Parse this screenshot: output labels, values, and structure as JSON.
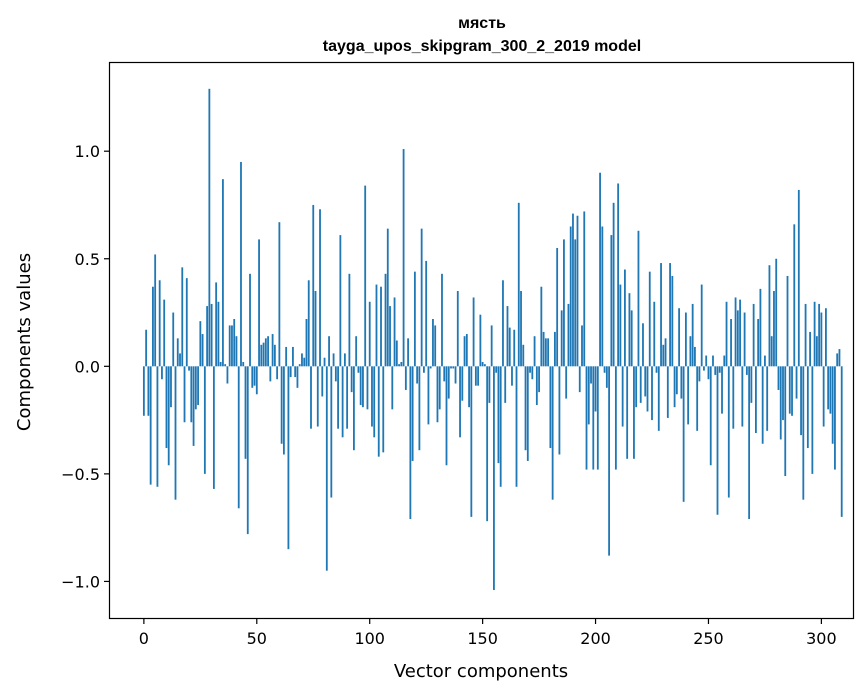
{
  "chart_data": {
    "type": "bar",
    "title_line1": "мясть",
    "title_line2": "tayga_upos_skipgram_300_2_2019 model",
    "xlabel": "Vector components",
    "ylabel": "Components values",
    "xlim": [
      -15,
      314
    ],
    "ylim": [
      -1.17,
      1.41
    ],
    "xticks": [
      0,
      50,
      100,
      150,
      200,
      250,
      300
    ],
    "xtick_labels": [
      "0",
      "50",
      "100",
      "150",
      "200",
      "250",
      "300"
    ],
    "yticks": [
      -1.0,
      -0.5,
      0.0,
      0.5,
      1.0
    ],
    "ytick_labels": [
      "−1.0",
      "−0.5",
      "0.0",
      "0.5",
      "1.0"
    ],
    "bar_color": "#1f77b4",
    "values": [
      -0.23,
      0.17,
      -0.23,
      -0.55,
      0.37,
      0.52,
      -0.56,
      0.4,
      -0.06,
      0.31,
      -0.38,
      -0.46,
      -0.19,
      0.25,
      -0.62,
      0.13,
      0.06,
      0.46,
      -0.26,
      0.41,
      -0.02,
      -0.26,
      -0.37,
      -0.2,
      -0.18,
      0.21,
      0.15,
      -0.5,
      0.28,
      1.29,
      0.29,
      -0.57,
      0.39,
      0.3,
      0.02,
      0.87,
      0.01,
      -0.08,
      0.19,
      0.19,
      0.22,
      0.14,
      -0.66,
      0.95,
      0.02,
      -0.43,
      -0.78,
      0.43,
      -0.1,
      -0.09,
      -0.13,
      0.59,
      0.1,
      0.11,
      0.13,
      0.14,
      -0.07,
      0.15,
      0.1,
      -0.06,
      0.67,
      -0.36,
      -0.41,
      0.09,
      -0.85,
      -0.05,
      0.09,
      -0.05,
      -0.1,
      0.01,
      0.06,
      0.04,
      0.22,
      0.4,
      -0.29,
      0.75,
      0.35,
      -0.28,
      0.73,
      -0.14,
      0.04,
      -0.95,
      0.14,
      -0.61,
      0.06,
      -0.07,
      -0.29,
      0.61,
      -0.33,
      0.06,
      -0.29,
      0.43,
      -0.12,
      -0.39,
      0.14,
      -0.03,
      -0.18,
      -0.19,
      0.84,
      -0.2,
      0.3,
      -0.28,
      -0.33,
      0.38,
      -0.42,
      0.37,
      -0.4,
      0.43,
      0.64,
      0.28,
      -0.2,
      0.32,
      0.12,
      0.01,
      0.02,
      1.01,
      -0.11,
      0.13,
      -0.71,
      -0.44,
      0.44,
      -0.08,
      -0.39,
      0.64,
      -0.03,
      0.49,
      -0.27,
      -0.01,
      0.22,
      0.19,
      -0.26,
      -0.2,
      0.43,
      -0.07,
      -0.46,
      -0.15,
      -0.01,
      -0.01,
      -0.08,
      0.35,
      -0.33,
      -0.16,
      0.14,
      0.15,
      -0.19,
      -0.7,
      0.32,
      -0.09,
      -0.09,
      0.24,
      0.02,
      0.01,
      -0.72,
      -0.17,
      0.19,
      -1.04,
      -0.03,
      -0.45,
      -0.56,
      0.4,
      -0.17,
      0.28,
      0.18,
      -0.09,
      0.17,
      -0.56,
      0.76,
      0.35,
      0.1,
      -0.39,
      -0.44,
      -0.03,
      -0.06,
      0.14,
      -0.18,
      -0.12,
      0.37,
      0.16,
      0.13,
      0.13,
      -0.38,
      -0.62,
      0.16,
      0.55,
      -0.41,
      0.26,
      0.59,
      -0.15,
      0.29,
      0.65,
      0.71,
      0.59,
      0.7,
      -0.12,
      0.19,
      0.72,
      -0.48,
      -0.27,
      -0.08,
      -0.48,
      -0.21,
      -0.48,
      0.9,
      0.65,
      -0.03,
      -0.1,
      -0.88,
      0.61,
      0.76,
      -0.48,
      0.85,
      0.38,
      -0.28,
      0.45,
      -0.43,
      0.34,
      0.26,
      -0.43,
      -0.19,
      0.63,
      -0.17,
      0.2,
      -0.14,
      -0.21,
      0.44,
      -0.25,
      0.3,
      -0.03,
      -0.3,
      0.48,
      0.1,
      0.13,
      -0.24,
      0.48,
      0.42,
      -0.19,
      -0.13,
      0.27,
      -0.15,
      -0.63,
      0.25,
      -0.27,
      0.14,
      0.29,
      0.09,
      -0.3,
      -0.07,
      0.38,
      -0.02,
      0.05,
      -0.06,
      -0.46,
      0.05,
      -0.04,
      -0.69,
      -0.03,
      -0.22,
      0.05,
      0.3,
      -0.61,
      0.22,
      -0.29,
      0.32,
      0.26,
      0.31,
      -0.28,
      0.25,
      -0.04,
      -0.71,
      -0.17,
      0.29,
      -0.31,
      0.22,
      0.36,
      -0.36,
      0.05,
      -0.3,
      0.47,
      0.14,
      0.35,
      0.5,
      -0.11,
      -0.34,
      -0.25,
      -0.51,
      0.42,
      -0.22,
      -0.23,
      0.66,
      -0.15,
      0.82,
      -0.32,
      -0.62,
      0.29,
      -0.38,
      0.16,
      -0.5,
      0.3,
      0.14,
      0.29,
      0.25,
      -0.28,
      0.27,
      -0.2,
      -0.22,
      -0.36,
      -0.48,
      0.06,
      0.08,
      -0.7
    ]
  }
}
